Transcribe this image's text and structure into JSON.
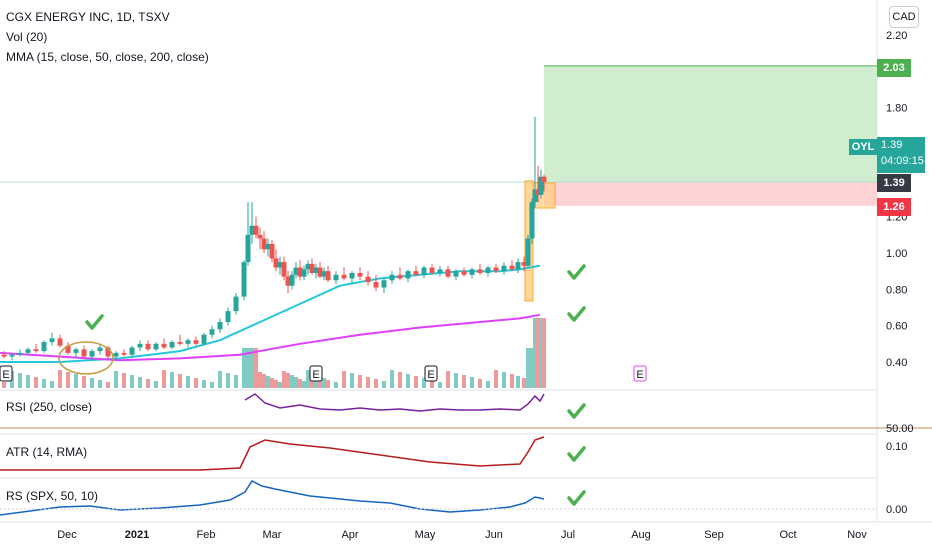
{
  "header": {
    "symbol_line": "CGX ENERGY INC, 1D, TSXV",
    "vol_line": "Vol (20)",
    "mma_line": "MMA (15, close, 50, close, 200, close)",
    "currency": "CAD"
  },
  "panes": {
    "rsi_label": "RSI (250, close)",
    "atr_label": "ATR (14, RMA)",
    "rs_label": "RS (SPX, 50, 10)"
  },
  "price_axis": {
    "ticks": [
      "2.20",
      "1.80",
      "1.20",
      "1.00",
      "0.80",
      "0.60",
      "0.40"
    ],
    "tick_values": [
      2.2,
      1.8,
      1.2,
      1.0,
      0.8,
      0.6,
      0.4
    ],
    "rsi_tick": "50.00",
    "atr_tick": "0.10",
    "rs_tick": "0.00"
  },
  "price_tags": {
    "target": "2.03",
    "target_color": "#4caf50",
    "last": "1.39",
    "last_color": "#363a45",
    "stop": "1.26",
    "stop_color": "#f23645",
    "oyl_label": "OYL",
    "oyl_price": "1.39",
    "oyl_countdown": "04:09:15",
    "oyl_color": "#26a69a"
  },
  "time_axis": {
    "labels": [
      "Dec",
      "2021",
      "Feb",
      "Mar",
      "Apr",
      "May",
      "Jun",
      "Jul",
      "Aug",
      "Sep",
      "Oct",
      "Nov"
    ]
  },
  "earnings_markers": [
    "E",
    "E",
    "E",
    "E"
  ],
  "chart_data": {
    "type": "candlestick",
    "title": "CGX ENERGY INC, 1D, TSXV",
    "ylim": [
      0.3,
      2.25
    ],
    "position": {
      "entry": 1.39,
      "target": 2.03,
      "stop": 1.26
    },
    "series": [
      {
        "name": "MMA 50",
        "color": "#26c6da",
        "points": [
          [
            0,
            0.4
          ],
          [
            60,
            0.4
          ],
          [
            120,
            0.42
          ],
          [
            180,
            0.46
          ],
          [
            220,
            0.52
          ],
          [
            260,
            0.62
          ],
          [
            300,
            0.72
          ],
          [
            340,
            0.82
          ],
          [
            380,
            0.86
          ],
          [
            420,
            0.88
          ],
          [
            460,
            0.9
          ],
          [
            500,
            0.9
          ],
          [
            520,
            0.91
          ],
          [
            540,
            0.93
          ]
        ]
      },
      {
        "name": "MMA 200",
        "color": "#e040fb",
        "points": [
          [
            0,
            0.45
          ],
          [
            60,
            0.43
          ],
          [
            120,
            0.41
          ],
          [
            180,
            0.42
          ],
          [
            240,
            0.44
          ],
          [
            300,
            0.5
          ],
          [
            360,
            0.55
          ],
          [
            420,
            0.59
          ],
          [
            480,
            0.62
          ],
          [
            520,
            0.64
          ],
          [
            540,
            0.66
          ]
        ]
      }
    ],
    "candles": [
      [
        4,
        0.44,
        0.46,
        0.42,
        0.43
      ],
      [
        12,
        0.43,
        0.45,
        0.41,
        0.44
      ],
      [
        20,
        0.44,
        0.47,
        0.43,
        0.45
      ],
      [
        28,
        0.45,
        0.48,
        0.44,
        0.47
      ],
      [
        36,
        0.47,
        0.5,
        0.45,
        0.46
      ],
      [
        44,
        0.46,
        0.52,
        0.45,
        0.51
      ],
      [
        52,
        0.51,
        0.56,
        0.49,
        0.53
      ],
      [
        60,
        0.53,
        0.55,
        0.48,
        0.49
      ],
      [
        68,
        0.49,
        0.51,
        0.44,
        0.45
      ],
      [
        76,
        0.45,
        0.48,
        0.42,
        0.47
      ],
      [
        84,
        0.47,
        0.49,
        0.42,
        0.43
      ],
      [
        92,
        0.43,
        0.47,
        0.41,
        0.46
      ],
      [
        100,
        0.46,
        0.5,
        0.44,
        0.48
      ],
      [
        108,
        0.48,
        0.49,
        0.42,
        0.43
      ],
      [
        116,
        0.43,
        0.46,
        0.41,
        0.45
      ],
      [
        124,
        0.45,
        0.47,
        0.43,
        0.44
      ],
      [
        132,
        0.44,
        0.49,
        0.43,
        0.48
      ],
      [
        140,
        0.48,
        0.52,
        0.46,
        0.5
      ],
      [
        148,
        0.5,
        0.52,
        0.46,
        0.47
      ],
      [
        156,
        0.47,
        0.51,
        0.46,
        0.5
      ],
      [
        164,
        0.5,
        0.53,
        0.47,
        0.48
      ],
      [
        172,
        0.48,
        0.52,
        0.47,
        0.51
      ],
      [
        180,
        0.51,
        0.55,
        0.49,
        0.5
      ],
      [
        188,
        0.5,
        0.53,
        0.48,
        0.52
      ],
      [
        196,
        0.52,
        0.54,
        0.49,
        0.5
      ],
      [
        204,
        0.5,
        0.56,
        0.49,
        0.55
      ],
      [
        212,
        0.55,
        0.6,
        0.53,
        0.58
      ],
      [
        220,
        0.58,
        0.64,
        0.56,
        0.62
      ],
      [
        228,
        0.62,
        0.7,
        0.6,
        0.68
      ],
      [
        236,
        0.68,
        0.78,
        0.66,
        0.76
      ],
      [
        244,
        0.76,
        0.96,
        0.74,
        0.95
      ],
      [
        248,
        0.95,
        1.28,
        0.93,
        1.1
      ],
      [
        252,
        1.1,
        1.28,
        1.05,
        1.15
      ],
      [
        256,
        1.15,
        1.2,
        1.08,
        1.1
      ],
      [
        260,
        1.1,
        1.14,
        1.02,
        1.08
      ],
      [
        264,
        1.08,
        1.12,
        1.0,
        1.02
      ],
      [
        268,
        1.02,
        1.08,
        0.98,
        1.05
      ],
      [
        272,
        1.05,
        1.07,
        0.95,
        0.97
      ],
      [
        276,
        0.97,
        1.02,
        0.9,
        0.92
      ],
      [
        280,
        0.92,
        0.98,
        0.88,
        0.95
      ],
      [
        284,
        0.95,
        0.98,
        0.85,
        0.87
      ],
      [
        288,
        0.87,
        0.9,
        0.78,
        0.82
      ],
      [
        292,
        0.82,
        0.9,
        0.8,
        0.88
      ],
      [
        296,
        0.88,
        0.95,
        0.86,
        0.92
      ],
      [
        300,
        0.92,
        0.96,
        0.85,
        0.87
      ],
      [
        304,
        0.87,
        0.93,
        0.85,
        0.91
      ],
      [
        308,
        0.91,
        0.96,
        0.88,
        0.94
      ],
      [
        312,
        0.94,
        0.97,
        0.88,
        0.89
      ],
      [
        316,
        0.89,
        0.94,
        0.86,
        0.92
      ],
      [
        320,
        0.92,
        0.95,
        0.86,
        0.87
      ],
      [
        324,
        0.87,
        0.92,
        0.85,
        0.9
      ],
      [
        328,
        0.9,
        0.93,
        0.84,
        0.85
      ],
      [
        336,
        0.85,
        0.9,
        0.83,
        0.88
      ],
      [
        344,
        0.88,
        0.92,
        0.85,
        0.86
      ],
      [
        352,
        0.86,
        0.9,
        0.83,
        0.89
      ],
      [
        360,
        0.89,
        0.92,
        0.85,
        0.87
      ],
      [
        368,
        0.87,
        0.9,
        0.82,
        0.84
      ],
      [
        376,
        0.84,
        0.88,
        0.79,
        0.81
      ],
      [
        384,
        0.81,
        0.86,
        0.78,
        0.85
      ],
      [
        392,
        0.85,
        0.9,
        0.83,
        0.88
      ],
      [
        400,
        0.88,
        0.92,
        0.85,
        0.86
      ],
      [
        408,
        0.86,
        0.91,
        0.84,
        0.9
      ],
      [
        416,
        0.9,
        0.93,
        0.87,
        0.88
      ],
      [
        424,
        0.88,
        0.93,
        0.86,
        0.92
      ],
      [
        432,
        0.92,
        0.94,
        0.88,
        0.89
      ],
      [
        440,
        0.89,
        0.93,
        0.87,
        0.91
      ],
      [
        448,
        0.91,
        0.93,
        0.86,
        0.87
      ],
      [
        456,
        0.87,
        0.91,
        0.85,
        0.9
      ],
      [
        464,
        0.9,
        0.92,
        0.87,
        0.88
      ],
      [
        472,
        0.88,
        0.92,
        0.86,
        0.91
      ],
      [
        480,
        0.91,
        0.94,
        0.88,
        0.89
      ],
      [
        488,
        0.89,
        0.93,
        0.87,
        0.92
      ],
      [
        496,
        0.92,
        0.94,
        0.89,
        0.9
      ],
      [
        504,
        0.9,
        0.95,
        0.88,
        0.93
      ],
      [
        512,
        0.93,
        0.96,
        0.9,
        0.91
      ],
      [
        518,
        0.91,
        0.97,
        0.89,
        0.95
      ],
      [
        524,
        0.95,
        0.98,
        0.9,
        0.93
      ],
      [
        528,
        0.93,
        1.1,
        0.92,
        1.08
      ],
      [
        532,
        1.08,
        1.3,
        1.05,
        1.28
      ],
      [
        535,
        1.28,
        1.75,
        1.25,
        1.35
      ],
      [
        538,
        1.35,
        1.48,
        1.28,
        1.32
      ],
      [
        541,
        1.32,
        1.46,
        1.3,
        1.42
      ],
      [
        544,
        1.42,
        1.43,
        1.34,
        1.39
      ]
    ]
  }
}
